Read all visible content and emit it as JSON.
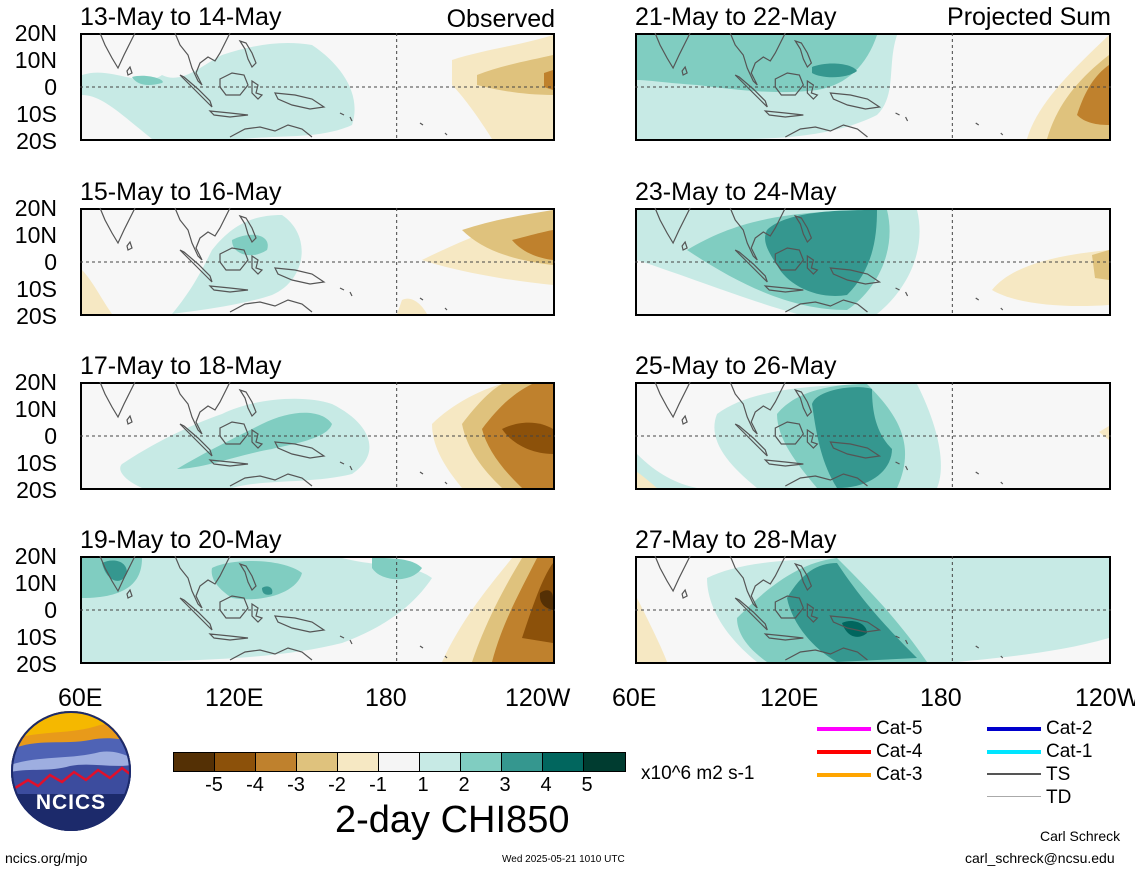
{
  "panels": [
    {
      "title": "13-May to 14-May",
      "tag": "Observed"
    },
    {
      "title": "21-May to 22-May",
      "tag": "Projected Sum"
    },
    {
      "title": "15-May to 16-May",
      "tag": ""
    },
    {
      "title": "23-May to 24-May",
      "tag": ""
    },
    {
      "title": "17-May to 18-May",
      "tag": ""
    },
    {
      "title": "25-May to 26-May",
      "tag": ""
    },
    {
      "title": "19-May to 20-May",
      "tag": ""
    },
    {
      "title": "27-May to 28-May",
      "tag": ""
    }
  ],
  "lat_labels": [
    "20N",
    "10N",
    "0",
    "10S",
    "20S"
  ],
  "lon_labels": [
    "60E",
    "120E",
    "180",
    "120W"
  ],
  "colorbar": {
    "colors": [
      "#543005",
      "#8c510a",
      "#bf812d",
      "#dfc27d",
      "#f6e8c3",
      "#f5f5f5",
      "#c7eae5",
      "#80cdc1",
      "#35978f",
      "#01665e",
      "#003c30"
    ],
    "ticks": [
      "-5",
      "-4",
      "-3",
      "-2",
      "-1",
      "1",
      "2",
      "3",
      "4",
      "5"
    ],
    "units": "x10^6 m2 s-1",
    "title": "2-day CHI850"
  },
  "legend": {
    "left": [
      {
        "label": "Cat-5",
        "color": "#ff00ff"
      },
      {
        "label": "Cat-4",
        "color": "#ff0000"
      },
      {
        "label": "Cat-3",
        "color": "#ffa500"
      }
    ],
    "right": [
      {
        "label": "Cat-2",
        "color": "#0000cc"
      },
      {
        "label": "Cat-1",
        "color": "#00e5ff"
      },
      {
        "label": "TS",
        "color": "#555555"
      },
      {
        "label": "TD",
        "color": "#aaaaaa"
      }
    ]
  },
  "logo": {
    "text": "NCICS"
  },
  "footer": {
    "url": "ncics.org/mjo",
    "timestamp": "Wed 2025-05-21 1010 UTC",
    "author": "Carl Schreck",
    "email": "carl_schreck@ncsu.edu"
  }
}
